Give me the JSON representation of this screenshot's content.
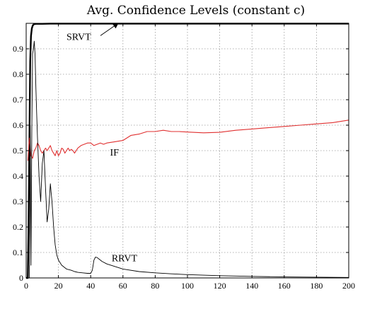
{
  "chart_data": {
    "type": "line",
    "title": "Avg. Confidence Levels (constant c)",
    "xlabel": "",
    "ylabel": "",
    "xlim": [
      0,
      200
    ],
    "ylim": [
      0,
      1
    ],
    "x_ticks": [
      0,
      20,
      40,
      60,
      80,
      100,
      120,
      140,
      160,
      180,
      200
    ],
    "y_ticks": [
      0,
      0.1,
      0.2,
      0.3,
      0.4,
      0.5,
      0.6,
      0.7,
      0.8,
      0.9
    ],
    "grid": true,
    "series": [
      {
        "name": "SRVT",
        "color": "#000000",
        "stroke_width": 2.4,
        "x": [
          0,
          1,
          1.5,
          2,
          2.5,
          3,
          3.5,
          4,
          4.5,
          5,
          6,
          7,
          8,
          10,
          15,
          20,
          30,
          50,
          100,
          150,
          200
        ],
        "y": [
          0,
          0.0,
          0.2,
          0.55,
          0.85,
          0.95,
          0.98,
          0.99,
          0.995,
          0.997,
          0.998,
          0.998,
          0.998,
          0.998,
          0.999,
          0.999,
          0.999,
          0.999,
          0.999,
          0.999,
          0.999
        ]
      },
      {
        "name": "IF",
        "color": "#e03030",
        "stroke_width": 1.1,
        "x": [
          1,
          2,
          3,
          4,
          5,
          6,
          7,
          8,
          9,
          10,
          11,
          12,
          13,
          14,
          15,
          16,
          17,
          18,
          19,
          20,
          21,
          22,
          23,
          24,
          25,
          26,
          27,
          28,
          29,
          30,
          32,
          34,
          36,
          38,
          40,
          42,
          44,
          46,
          48,
          50,
          55,
          60,
          65,
          70,
          75,
          80,
          85,
          90,
          95,
          100,
          110,
          120,
          130,
          140,
          150,
          160,
          170,
          180,
          190,
          200
        ],
        "y": [
          0.46,
          0.55,
          0.48,
          0.47,
          0.5,
          0.51,
          0.53,
          0.52,
          0.5,
          0.49,
          0.5,
          0.51,
          0.5,
          0.51,
          0.52,
          0.5,
          0.49,
          0.48,
          0.5,
          0.48,
          0.49,
          0.51,
          0.505,
          0.49,
          0.5,
          0.51,
          0.5,
          0.505,
          0.5,
          0.49,
          0.51,
          0.52,
          0.525,
          0.53,
          0.53,
          0.52,
          0.525,
          0.53,
          0.525,
          0.53,
          0.535,
          0.54,
          0.56,
          0.565,
          0.575,
          0.575,
          0.58,
          0.575,
          0.575,
          0.573,
          0.57,
          0.572,
          0.58,
          0.585,
          0.59,
          0.595,
          0.6,
          0.605,
          0.61,
          0.62
        ]
      },
      {
        "name": "RRVT",
        "color": "#000000",
        "stroke_width": 0.9,
        "x": [
          0,
          1,
          2,
          2.5,
          3,
          3.5,
          4,
          4.5,
          5,
          5.5,
          6,
          6.5,
          7,
          8,
          9,
          10,
          11,
          12,
          13,
          14,
          15,
          16,
          17,
          18,
          19,
          20,
          22,
          25,
          28,
          30,
          32,
          35,
          38,
          40,
          41,
          42,
          43,
          44,
          45,
          47,
          50,
          55,
          60,
          70,
          80,
          90,
          100,
          120,
          140,
          160,
          180,
          200
        ],
        "y": [
          0,
          0.0,
          0.0,
          0.6,
          0.05,
          0.6,
          0.88,
          0.9,
          0.93,
          0.88,
          0.75,
          0.65,
          0.55,
          0.4,
          0.3,
          0.45,
          0.5,
          0.35,
          0.22,
          0.27,
          0.37,
          0.3,
          0.2,
          0.13,
          0.09,
          0.07,
          0.05,
          0.035,
          0.03,
          0.025,
          0.022,
          0.02,
          0.018,
          0.018,
          0.03,
          0.07,
          0.082,
          0.08,
          0.075,
          0.065,
          0.055,
          0.045,
          0.035,
          0.025,
          0.02,
          0.016,
          0.013,
          0.009,
          0.006,
          0.004,
          0.003,
          0.002
        ]
      }
    ],
    "annotations": [
      {
        "text": "SRVT",
        "x": 25,
        "y": 0.935,
        "arrow_to": [
          57,
          1.0
        ]
      },
      {
        "text": "IF",
        "x": 52,
        "y": 0.48
      },
      {
        "text": "RRVT",
        "x": 53,
        "y": 0.065
      }
    ]
  }
}
